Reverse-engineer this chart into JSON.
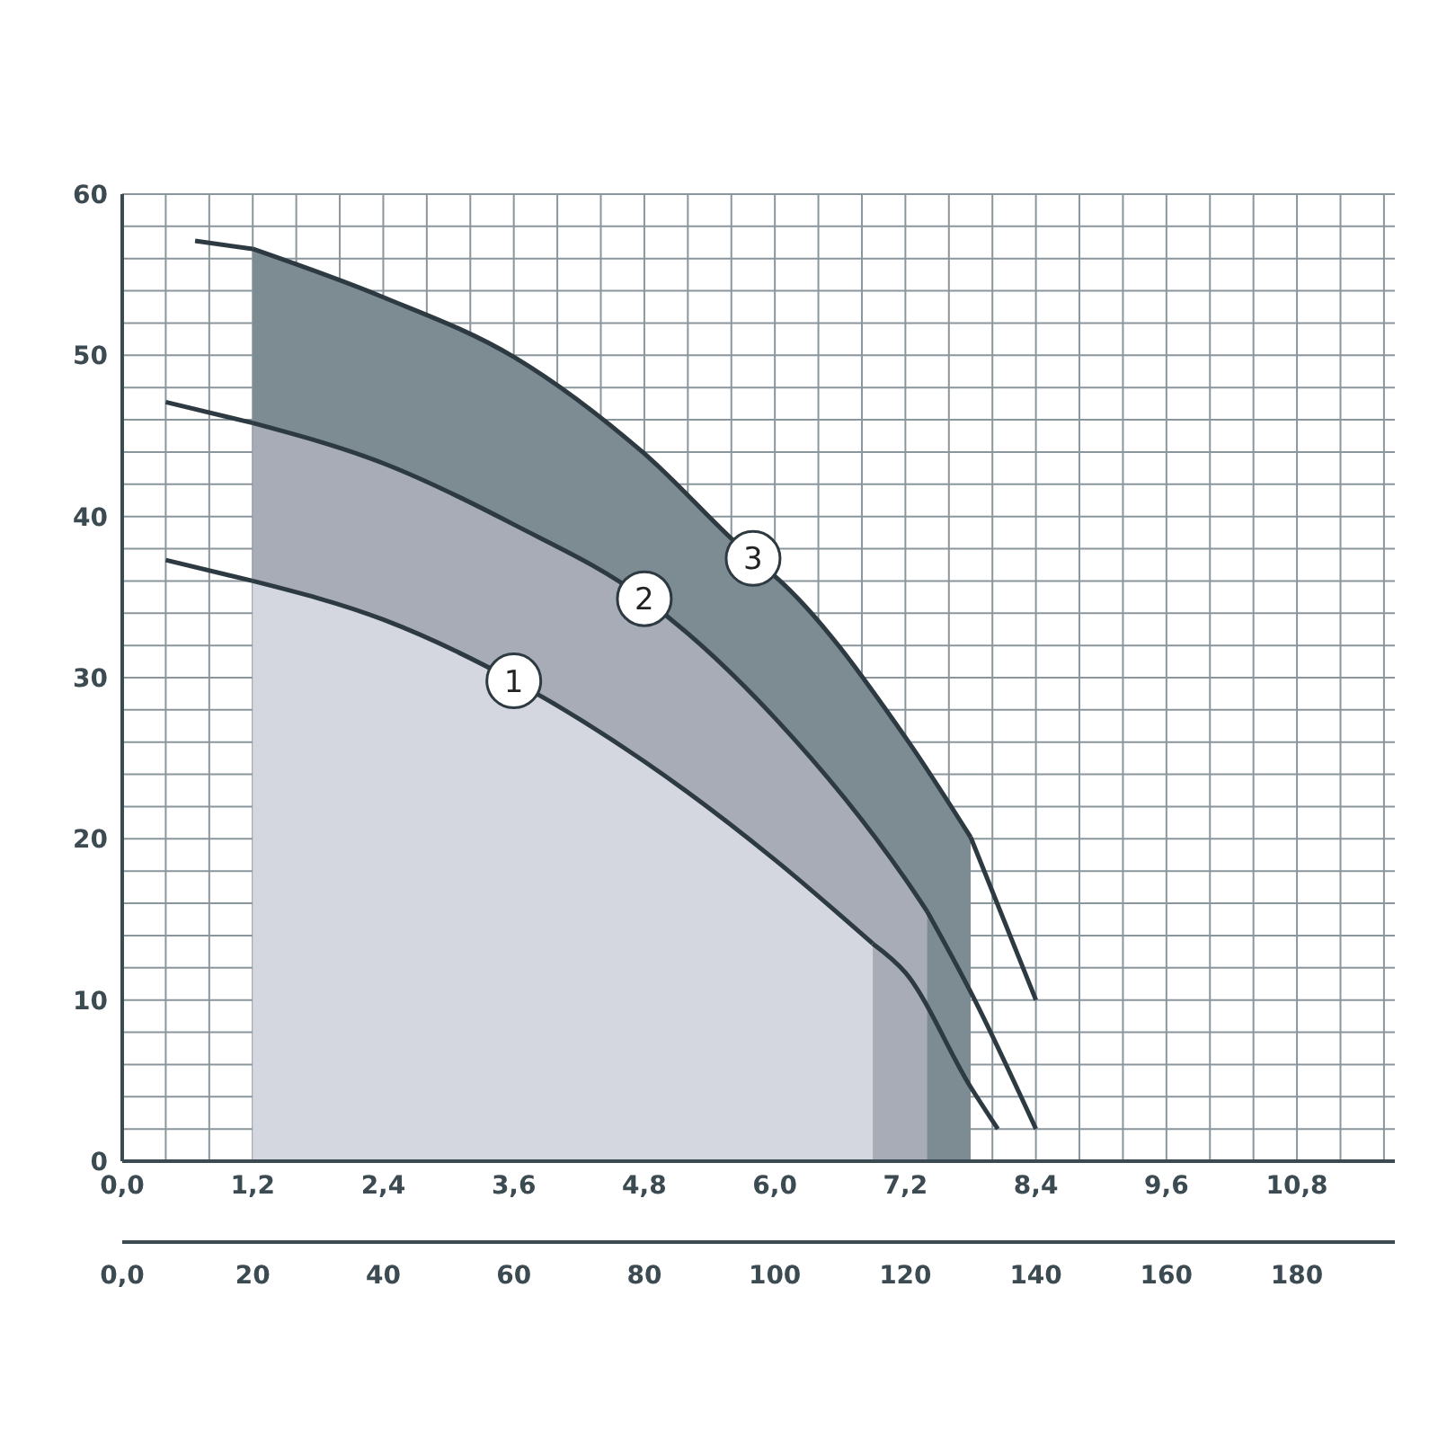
{
  "chart_data": {
    "type": "line",
    "xlim": [
      0,
      11.7
    ],
    "xticks": [
      {
        "value": 0,
        "label": "0,0"
      },
      {
        "value": 0.4,
        "label": null
      },
      {
        "value": 0.8,
        "label": null
      },
      {
        "value": 1.2,
        "label": "1,2"
      },
      {
        "value": 1.6,
        "label": null
      },
      {
        "value": 2.0,
        "label": null
      },
      {
        "value": 2.4,
        "label": "2,4"
      },
      {
        "value": 2.8,
        "label": null
      },
      {
        "value": 3.2,
        "label": null
      },
      {
        "value": 3.6,
        "label": "3,6"
      },
      {
        "value": 4.0,
        "label": null
      },
      {
        "value": 4.4,
        "label": null
      },
      {
        "value": 4.8,
        "label": "4,8"
      },
      {
        "value": 5.2,
        "label": null
      },
      {
        "value": 5.6,
        "label": null
      },
      {
        "value": 6.0,
        "label": "6,0"
      },
      {
        "value": 6.4,
        "label": null
      },
      {
        "value": 6.8,
        "label": null
      },
      {
        "value": 7.2,
        "label": "7,2"
      },
      {
        "value": 7.6,
        "label": null
      },
      {
        "value": 8.0,
        "label": null
      },
      {
        "value": 8.4,
        "label": "8,4"
      },
      {
        "value": 8.8,
        "label": null
      },
      {
        "value": 9.2,
        "label": null
      },
      {
        "value": 9.6,
        "label": "9,6"
      },
      {
        "value": 10.0,
        "label": null
      },
      {
        "value": 10.4,
        "label": null
      },
      {
        "value": 10.8,
        "label": "10,8"
      },
      {
        "value": 11.2,
        "label": null
      },
      {
        "value": 11.6,
        "label": null
      }
    ],
    "x2lim": [
      0,
      195
    ],
    "x2ticks": [
      {
        "value": 0,
        "label": "0,0"
      },
      20,
      40,
      60,
      80,
      100,
      120,
      140,
      160,
      180
    ],
    "ylim": [
      0,
      60
    ],
    "yticks": [
      0,
      {
        "value": 2,
        "label": null
      },
      {
        "value": 4,
        "label": null
      },
      {
        "value": 6,
        "label": null
      },
      {
        "value": 8,
        "label": null
      },
      10,
      {
        "value": 12,
        "label": null
      },
      {
        "value": 14,
        "label": null
      },
      {
        "value": 16,
        "label": null
      },
      {
        "value": 18,
        "label": null
      },
      20,
      {
        "value": 22,
        "label": null
      },
      {
        "value": 24,
        "label": null
      },
      {
        "value": 26,
        "label": null
      },
      {
        "value": 28,
        "label": null
      },
      30,
      {
        "value": 32,
        "label": null
      },
      {
        "value": 34,
        "label": null
      },
      {
        "value": 36,
        "label": null
      },
      {
        "value": 38,
        "label": null
      },
      40,
      {
        "value": 42,
        "label": null
      },
      {
        "value": 44,
        "label": null
      },
      {
        "value": 46,
        "label": null
      },
      {
        "value": 48,
        "label": null
      },
      50,
      {
        "value": 52,
        "label": null
      },
      {
        "value": 54,
        "label": null
      },
      {
        "value": 56,
        "label": null
      },
      {
        "value": 58,
        "label": null
      },
      60
    ],
    "grid": true,
    "legend": false,
    "marker": "none",
    "line_style": "solid",
    "series": [
      {
        "type": "area",
        "name": "3",
        "color": "#7d8b93",
        "x": [
          1.2,
          2.4,
          3.6,
          4.8,
          5.8,
          6.0,
          7.2,
          7.8
        ],
        "values": [
          56.6,
          53.6,
          49.9,
          43.9,
          37.4,
          36.3,
          26.3,
          20.1
        ]
      },
      {
        "type": "area",
        "name": "2",
        "color": "#a8acb7",
        "x": [
          1.2,
          2.4,
          3.6,
          4.8,
          6.0,
          7.2,
          7.4
        ],
        "values": [
          45.8,
          43.3,
          39.5,
          34.9,
          27.5,
          17.5,
          15.5
        ]
      },
      {
        "type": "area",
        "name": "1",
        "color": "#d4d7df",
        "x": [
          1.2,
          2.4,
          3.6,
          4.8,
          6.0,
          6.9
        ],
        "values": [
          36.0,
          33.6,
          29.8,
          24.8,
          18.7,
          13.5
        ]
      },
      {
        "type": "line",
        "color": "#2e3a42",
        "x": [
          0.67,
          1.2,
          4.0,
          7.8,
          8.4
        ],
        "values": [
          57.1,
          56.6,
          null,
          20.1,
          10
        ]
      },
      {
        "type": "line",
        "color": "#2e3a42",
        "x": [
          0.4,
          1.2,
          4.0,
          7.4,
          7.8,
          8.4
        ],
        "values": [
          47.1,
          45.8,
          null,
          15.5,
          10.5,
          2
        ]
      },
      {
        "type": "line",
        "color": "#2e3a42",
        "x": [
          0.4,
          1.2,
          4.0,
          6.9,
          7.2,
          7.8,
          8.05
        ],
        "values": [
          37.3,
          36.0,
          null,
          13.5,
          11.7,
          4.6,
          2
        ]
      }
    ]
  }
}
